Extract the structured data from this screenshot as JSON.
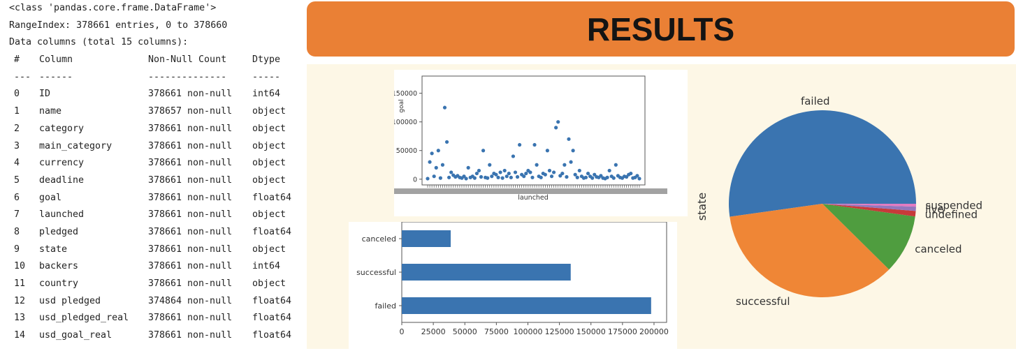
{
  "info": {
    "lines": [
      "<class 'pandas.core.frame.DataFrame'>",
      "RangeIndex: 378661 entries, 0 to 378660",
      "Data columns (total 15 columns):"
    ],
    "headers": [
      "#",
      "Column",
      "Non-Null Count",
      "Dtype"
    ],
    "separators": [
      "---",
      "------",
      "--------------",
      "-----"
    ],
    "rows": [
      [
        "0",
        "ID",
        "378661 non-null",
        "int64"
      ],
      [
        "1",
        "name",
        "378657 non-null",
        "object"
      ],
      [
        "2",
        "category",
        "378661 non-null",
        "object"
      ],
      [
        "3",
        "main_category",
        "378661 non-null",
        "object"
      ],
      [
        "4",
        "currency",
        "378661 non-null",
        "object"
      ],
      [
        "5",
        "deadline",
        "378661 non-null",
        "object"
      ],
      [
        "6",
        "goal",
        "378661 non-null",
        "float64"
      ],
      [
        "7",
        "launched",
        "378661 non-null",
        "object"
      ],
      [
        "8",
        "pledged",
        "378661 non-null",
        "float64"
      ],
      [
        "9",
        "state",
        "378661 non-null",
        "object"
      ],
      [
        "10",
        "backers",
        "378661 non-null",
        "int64"
      ],
      [
        "11",
        "country",
        "378661 non-null",
        "object"
      ],
      [
        "12",
        "usd pledged",
        "374864 non-null",
        "float64"
      ],
      [
        "13",
        "usd_pledged_real",
        "378661 non-null",
        "float64"
      ],
      [
        "14",
        "usd_goal_real",
        "378661 non-null",
        "float64"
      ]
    ]
  },
  "banner": {
    "title": "RESULTS"
  },
  "colors": {
    "banner": "#ea8035",
    "panel": "#fdf7e6",
    "blue": "#3a74b0",
    "orange": "#ef8636",
    "green": "#4f9d3f",
    "red": "#c73a3a",
    "purple": "#9476bd",
    "pink": "#e27bc1"
  },
  "chart_data": [
    {
      "type": "scatter",
      "xlabel": "launched",
      "ylabel": "goal",
      "ylim": [
        -10000,
        180000
      ],
      "yticks": [
        0,
        50000,
        100000,
        150000
      ],
      "ytick_labels": [
        "0",
        "50000",
        "100000",
        "150000"
      ],
      "x": [
        0,
        1,
        2,
        3,
        4,
        5,
        6,
        7,
        8,
        9,
        10,
        11,
        12,
        13,
        14,
        15,
        16,
        17,
        18,
        19,
        20,
        21,
        22,
        23,
        24,
        25,
        26,
        27,
        28,
        29,
        30,
        31,
        32,
        33,
        34,
        35,
        36,
        37,
        38,
        39,
        40,
        41,
        42,
        43,
        44,
        45,
        46,
        47,
        48,
        49,
        50,
        51,
        52,
        53,
        54,
        55,
        56,
        57,
        58,
        59,
        60,
        61,
        62,
        63,
        64,
        65,
        66,
        67,
        68,
        69,
        70,
        71,
        72,
        73,
        74,
        75,
        76,
        77,
        78,
        79,
        80,
        81,
        82,
        83,
        84,
        85,
        86,
        87,
        88,
        89,
        90,
        91,
        92,
        93,
        94,
        95,
        96,
        97,
        98,
        99
      ],
      "y": [
        1000,
        30000,
        45000,
        5000,
        20000,
        50000,
        2000,
        25000,
        125000,
        65000,
        3000,
        12000,
        7000,
        4000,
        6000,
        3000,
        2000,
        5000,
        1000,
        20000,
        3000,
        5000,
        2000,
        10000,
        15000,
        4000,
        50000,
        3000,
        2000,
        25000,
        5000,
        10000,
        8000,
        3000,
        12000,
        2000,
        15000,
        5000,
        10000,
        3000,
        40000,
        12000,
        4000,
        60000,
        8000,
        5000,
        10000,
        15000,
        12000,
        3000,
        60000,
        25000,
        5000,
        3000,
        10000,
        8000,
        50000,
        15000,
        5000,
        12000,
        90000,
        100000,
        6000,
        10000,
        25000,
        4000,
        70000,
        30000,
        50000,
        8000,
        3000,
        15000,
        5000,
        2000,
        3000,
        10000,
        5000,
        2000,
        8000,
        4000,
        3000,
        6000,
        2000,
        1000,
        3000,
        15000,
        5000,
        2000,
        25000,
        6000,
        3000,
        2000,
        5000,
        4000,
        8000,
        10000,
        2000,
        3000,
        6000,
        1000
      ]
    },
    {
      "type": "bar",
      "orientation": "horizontal",
      "categories": [
        "canceled",
        "successful",
        "failed"
      ],
      "values": [
        38779,
        133956,
        197719
      ],
      "xlim": [
        0,
        210000
      ],
      "xticks": [
        0,
        25000,
        50000,
        75000,
        100000,
        125000,
        150000,
        175000,
        200000
      ],
      "xtick_labels": [
        "0",
        "25000",
        "50000",
        "75000",
        "100000",
        "125000",
        "150000",
        "175000",
        "200000"
      ]
    },
    {
      "type": "pie",
      "ylabel": "state",
      "labels": [
        "failed",
        "successful",
        "canceled",
        "undefined",
        "live",
        "suspended"
      ],
      "values": [
        197719,
        133956,
        38779,
        3562,
        2799,
        1846
      ]
    }
  ]
}
